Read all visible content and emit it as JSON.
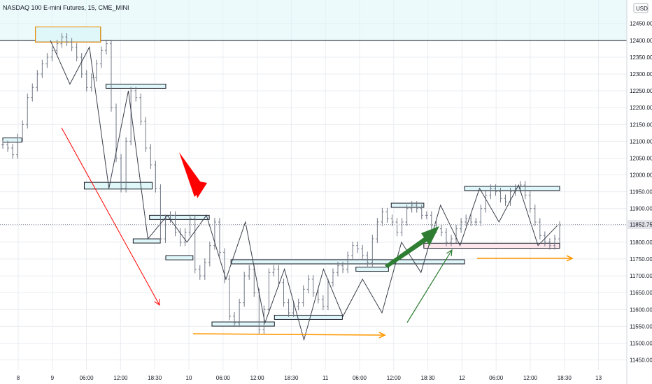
{
  "header": {
    "title": "NASDAQ 100 E-mini Futures, 15, CME_MINI",
    "currency": "USD"
  },
  "chart_data": {
    "type": "line",
    "title": "NASDAQ 100 E-mini Futures, 15, CME_MINI",
    "xlabel": "",
    "ylabel": "",
    "ylim": [
      11420,
      12520
    ],
    "x_ticks": [
      "8",
      "9",
      "06:00",
      "12:00",
      "18:30",
      "10",
      "06:00",
      "12:00",
      "18:30",
      "11",
      "06:00",
      "12:00",
      "18:30",
      "12",
      "06:00",
      "12:00",
      "18:30",
      "13"
    ],
    "y_ticks": [
      11450,
      11500,
      11550,
      11600,
      11650,
      11700,
      11750,
      11800,
      11850,
      11900,
      11950,
      12000,
      12050,
      12100,
      12150,
      12200,
      12250,
      12300,
      12350,
      12400,
      12450
    ],
    "y_tick_labels": [
      "11450.00",
      "11500.00",
      "11550.00",
      "11600.00",
      "11650.00",
      "11700.00",
      "11750.00",
      "11800.00",
      "11850.00",
      "11900.00",
      "11950.00",
      "12000.00",
      "12050.00",
      "12100.00",
      "12150.00",
      "12200.00",
      "12250.00",
      "12300.00",
      "12350.00",
      "12400.00",
      "12450.00"
    ],
    "current_price": 11852.75,
    "current_price_label": "11852.75",
    "resistance_level": 12400,
    "series": [
      {
        "values": [
          12090,
          12080,
          12060,
          12110,
          12150,
          12230,
          12260,
          12300,
          12330,
          12350,
          12370,
          12390,
          12410,
          12395,
          12380,
          12350,
          12300,
          12260,
          12290,
          12330,
          12370,
          12390,
          12200,
          12050,
          11960,
          12100,
          12250,
          12230,
          12160,
          12080,
          12030,
          11960,
          11810,
          11870,
          11880,
          11830,
          11800,
          11830,
          11870,
          11720,
          11700,
          11740,
          11790,
          11860,
          11770,
          11690,
          11580,
          11560,
          11620,
          11700,
          11720,
          11650,
          11540,
          11600,
          11710,
          11720,
          11680,
          11620,
          11590,
          11610,
          11620,
          11660,
          11690,
          11650,
          11630,
          11610,
          11680,
          11710,
          11730,
          11720,
          11760,
          11790,
          11780,
          11760,
          11740,
          11810,
          11860,
          11890,
          11870,
          11860,
          11830,
          11860,
          11900,
          11910,
          11900,
          11880,
          11880,
          11850,
          11840,
          11830,
          11800,
          11810,
          11840,
          11860,
          11870,
          11860,
          11860,
          11900,
          11940,
          11960,
          11950,
          11930,
          11920,
          11950,
          11960,
          11970,
          11940,
          11900,
          11860,
          11820,
          11800,
          11790,
          11810,
          11850
        ]
      }
    ],
    "zigzag": [
      12400,
      12270,
      12380,
      11960,
      12250,
      11810,
      11880,
      11800,
      11880,
      11690,
      11860,
      11560,
      11720,
      11510,
      11720,
      11580,
      11690,
      11590,
      11800,
      11710,
      11910,
      11790,
      11960,
      11860,
      11970,
      11790,
      11850
    ],
    "zones": [
      {
        "color": "#4dd0e1",
        "bounds": [
          12395,
          12440
        ]
      },
      {
        "color": "#ff9800",
        "bounds": [
          12395,
          12440
        ]
      },
      {
        "color": "#4dd0e1",
        "bounds": [
          12258,
          12270
        ]
      },
      {
        "color": "#4dd0e1",
        "bounds": [
          11958,
          11978
        ]
      },
      {
        "color": "#4dd0e1",
        "bounds": [
          12098,
          12110
        ]
      },
      {
        "color": "#4dd0e1",
        "bounds": [
          11868,
          11880
        ]
      },
      {
        "color": "#4dd0e1",
        "bounds": [
          11800,
          11810
        ]
      },
      {
        "color": "#4dd0e1",
        "bounds": [
          11748,
          11760
        ]
      },
      {
        "color": "#4dd0e1",
        "bounds": [
          11738,
          11748
        ]
      },
      {
        "color": "#4dd0e1",
        "bounds": [
          11553,
          11563
        ]
      },
      {
        "color": "#4dd0e1",
        "bounds": [
          11573,
          11583
        ]
      },
      {
        "color": "#4dd0e1",
        "bounds": [
          11908,
          11916
        ]
      },
      {
        "color": "#4dd0e1",
        "bounds": [
          11718,
          11726
        ]
      },
      {
        "color": "#4dd0e1",
        "bounds": [
          11958,
          11966
        ]
      },
      {
        "color": "#f8bbd0",
        "bounds": [
          11782,
          11797
        ]
      }
    ],
    "colors": {
      "grid": "#e9ecf1",
      "candle": "#707784",
      "zigzag": "#3a3f4a",
      "red_arrow": "#ff0000",
      "orange_arrow": "#ff9800",
      "green_arrow": "#2e7d32",
      "axis_text": "#131722"
    }
  }
}
